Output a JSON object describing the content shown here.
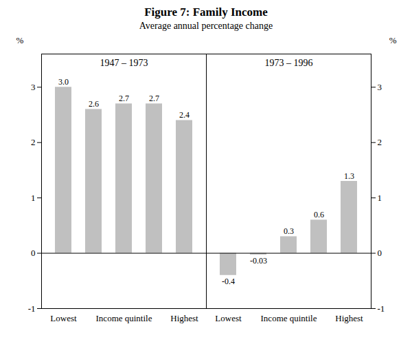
{
  "title": "Figure 7: Family Income",
  "subtitle": "Average annual percentage change",
  "chart_data": [
    {
      "type": "bar",
      "title": "1947 – 1973",
      "ylabel": "%",
      "categories": [
        "Lowest",
        null,
        "Income quintile",
        null,
        "Highest"
      ],
      "values": [
        3.0,
        2.6,
        2.7,
        2.7,
        2.4
      ],
      "value_labels": [
        "3.0",
        "2.6",
        "2.7",
        "2.7",
        "2.4"
      ],
      "data_labels": true,
      "color": "#c0c0c0",
      "ylim": [
        -1.0,
        3.6
      ],
      "yticks": [
        -1,
        0,
        1,
        2,
        3
      ],
      "grid": false
    },
    {
      "type": "bar",
      "title": "1973 – 1996",
      "ylabel": "%",
      "categories": [
        "Lowest",
        null,
        "Income quintile",
        null,
        "Highest"
      ],
      "values": [
        -0.4,
        -0.03,
        0.3,
        0.6,
        1.3
      ],
      "value_labels": [
        "-0.4",
        "-0.03",
        "0.3",
        "0.6",
        "1.3"
      ],
      "data_labels": true,
      "color": "#c0c0c0",
      "ylim": [
        -1.0,
        3.6
      ],
      "yticks": [
        -1,
        0,
        1,
        2,
        3
      ],
      "grid": false
    }
  ]
}
